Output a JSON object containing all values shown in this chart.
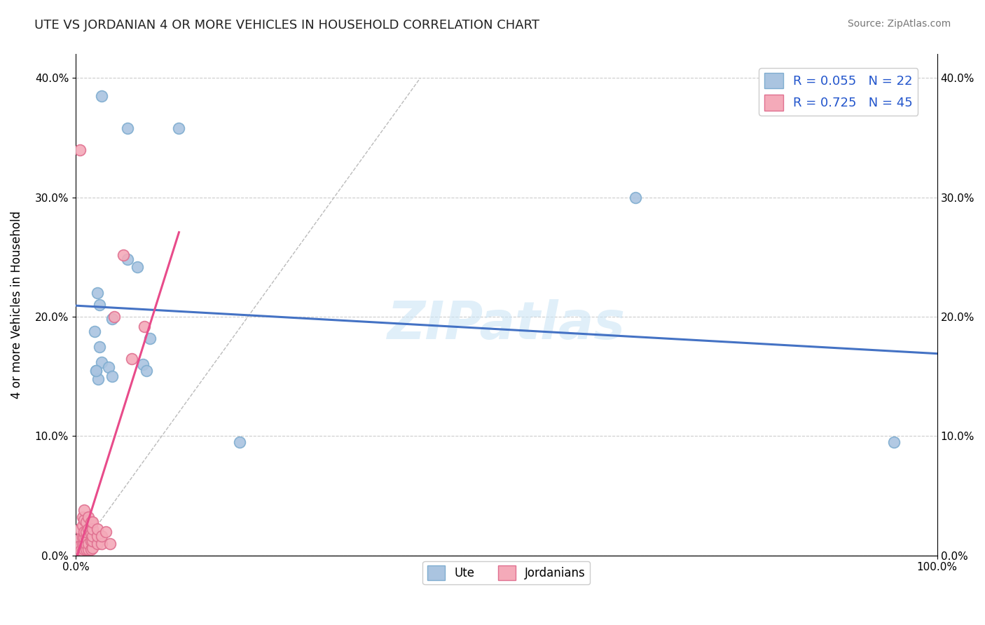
{
  "title": "UTE VS JORDANIAN 4 OR MORE VEHICLES IN HOUSEHOLD CORRELATION CHART",
  "source": "Source: ZipAtlas.com",
  "ylabel": "4 or more Vehicles in Household",
  "watermark": "ZIPatlas",
  "legend_ute_label": "Ute",
  "legend_jord_label": "Jordanians",
  "R_ute": 0.055,
  "N_ute": 22,
  "R_jord": 0.725,
  "N_jord": 45,
  "xlim": [
    0.0,
    1.0
  ],
  "ylim": [
    0.0,
    0.42
  ],
  "xtick_labels": [
    "0.0%",
    "100.0%"
  ],
  "ytick_labels": [
    "0.0%",
    "10.0%",
    "20.0%",
    "30.0%",
    "40.0%"
  ],
  "ytick_positions": [
    0.0,
    0.1,
    0.2,
    0.3,
    0.4
  ],
  "xtick_positions": [
    0.0,
    1.0
  ],
  "grid_color": "#cccccc",
  "background_color": "#ffffff",
  "ute_color": "#aac4e0",
  "jord_color": "#f4aab9",
  "ute_edge_color": "#7fadd0",
  "jord_edge_color": "#e07090",
  "trend_ute_color": "#4472c4",
  "trend_jord_color": "#e84b8a",
  "ute_scatter": [
    [
      0.03,
      0.385
    ],
    [
      0.06,
      0.358
    ],
    [
      0.12,
      0.358
    ],
    [
      0.025,
      0.22
    ],
    [
      0.028,
      0.21
    ],
    [
      0.06,
      0.248
    ],
    [
      0.072,
      0.242
    ],
    [
      0.022,
      0.188
    ],
    [
      0.028,
      0.175
    ],
    [
      0.03,
      0.162
    ],
    [
      0.024,
      0.155
    ],
    [
      0.026,
      0.148
    ],
    [
      0.038,
      0.158
    ],
    [
      0.042,
      0.15
    ],
    [
      0.078,
      0.16
    ],
    [
      0.082,
      0.155
    ],
    [
      0.086,
      0.182
    ],
    [
      0.19,
      0.095
    ],
    [
      0.65,
      0.3
    ],
    [
      0.95,
      0.095
    ],
    [
      0.024,
      0.155
    ],
    [
      0.042,
      0.198
    ]
  ],
  "jord_scatter": [
    [
      0.005,
      0.34
    ],
    [
      0.005,
      0.022
    ],
    [
      0.005,
      0.014
    ],
    [
      0.005,
      0.008
    ],
    [
      0.006,
      0.004
    ],
    [
      0.008,
      0.004
    ],
    [
      0.008,
      0.01
    ],
    [
      0.008,
      0.015
    ],
    [
      0.008,
      0.025
    ],
    [
      0.008,
      0.032
    ],
    [
      0.01,
      0.005
    ],
    [
      0.01,
      0.01
    ],
    [
      0.01,
      0.015
    ],
    [
      0.01,
      0.02
    ],
    [
      0.01,
      0.03
    ],
    [
      0.01,
      0.038
    ],
    [
      0.012,
      0.005
    ],
    [
      0.012,
      0.01
    ],
    [
      0.012,
      0.015
    ],
    [
      0.012,
      0.02
    ],
    [
      0.012,
      0.028
    ],
    [
      0.015,
      0.005
    ],
    [
      0.015,
      0.01
    ],
    [
      0.015,
      0.022
    ],
    [
      0.015,
      0.032
    ],
    [
      0.018,
      0.005
    ],
    [
      0.018,
      0.012
    ],
    [
      0.018,
      0.018
    ],
    [
      0.018,
      0.028
    ],
    [
      0.02,
      0.006
    ],
    [
      0.02,
      0.012
    ],
    [
      0.02,
      0.016
    ],
    [
      0.02,
      0.022
    ],
    [
      0.02,
      0.028
    ],
    [
      0.025,
      0.01
    ],
    [
      0.025,
      0.016
    ],
    [
      0.025,
      0.022
    ],
    [
      0.03,
      0.01
    ],
    [
      0.03,
      0.016
    ],
    [
      0.035,
      0.02
    ],
    [
      0.04,
      0.01
    ],
    [
      0.045,
      0.2
    ],
    [
      0.065,
      0.165
    ],
    [
      0.08,
      0.192
    ],
    [
      0.055,
      0.252
    ]
  ]
}
